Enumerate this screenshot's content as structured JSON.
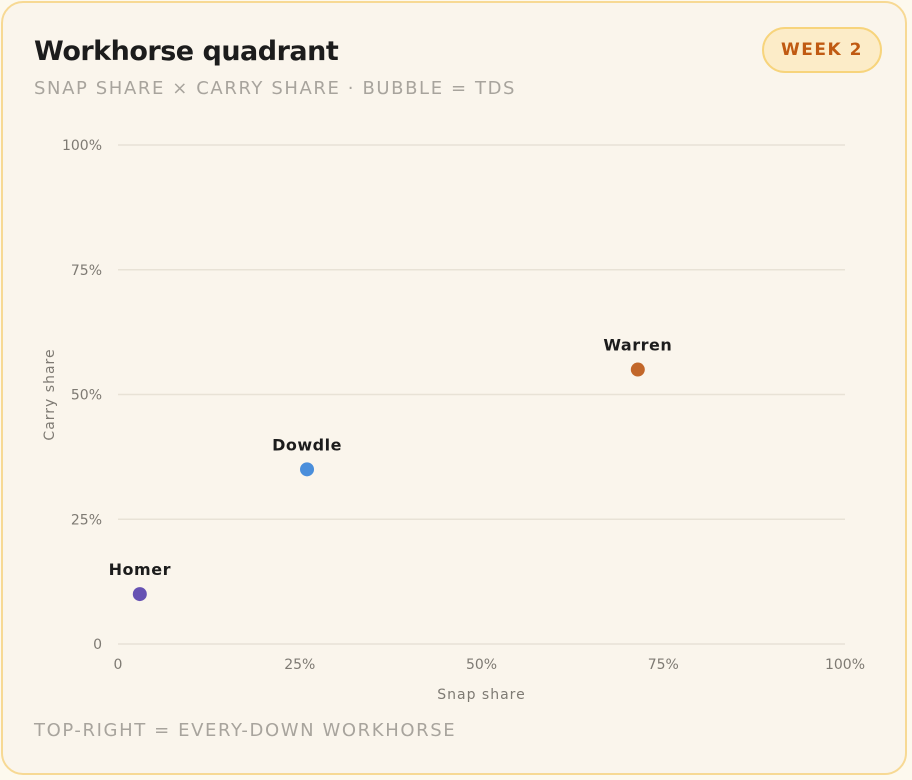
{
  "card": {
    "title": "Workhorse quadrant",
    "subtitle": "SNAP SHARE × CARRY SHARE · BUBBLE = TDS",
    "badge": "WEEK 2",
    "footer": "TOP-RIGHT = EVERY-DOWN WORKHORSE"
  },
  "colors": {
    "background": "#faf5ec",
    "border": "#f7d994",
    "badge_bg": "#fcecc8",
    "badge_text": "#c05a12",
    "grid": "#e8e2d6"
  },
  "chart_data": {
    "type": "scatter",
    "xlabel": "Snap share",
    "ylabel": "Carry share",
    "xlim": [
      0,
      100
    ],
    "ylim": [
      0,
      100
    ],
    "x_ticks": [
      {
        "value": 0,
        "label": "0"
      },
      {
        "value": 25,
        "label": "25%"
      },
      {
        "value": 50,
        "label": "50%"
      },
      {
        "value": 75,
        "label": "75%"
      },
      {
        "value": 100,
        "label": "100%"
      }
    ],
    "y_ticks": [
      {
        "value": 0,
        "label": "0"
      },
      {
        "value": 25,
        "label": "25%"
      },
      {
        "value": 50,
        "label": "50%"
      },
      {
        "value": 75,
        "label": "75%"
      },
      {
        "value": 100,
        "label": "100%"
      }
    ],
    "grid": true,
    "points": [
      {
        "name": "Homer",
        "x": 3,
        "y": 10,
        "color": "#6652b3"
      },
      {
        "name": "Dowdle",
        "x": 26,
        "y": 35,
        "color": "#4a8edb"
      },
      {
        "name": "Warren",
        "x": 71.5,
        "y": 55,
        "color": "#c2672a"
      }
    ]
  }
}
